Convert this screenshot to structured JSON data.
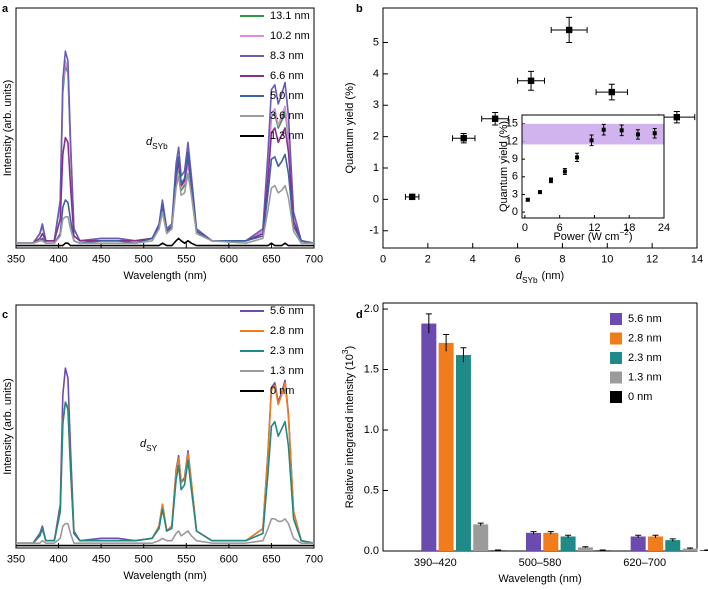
{
  "chart_data": [
    {
      "panel": "a",
      "type": "line",
      "x_label": "Wavelength (nm)",
      "y_label": "Intensity (arb. units)",
      "xlim": [
        350,
        700
      ],
      "xticks": [
        350,
        400,
        450,
        500,
        550,
        600,
        650,
        700
      ],
      "ylim": [
        0,
        100
      ],
      "legend": "upper right",
      "annotation": {
        "symbol": "d",
        "subscript": "SYb"
      },
      "x": [
        350,
        370,
        378,
        381,
        385,
        395,
        402,
        405,
        408,
        411,
        414,
        418,
        425,
        450,
        470,
        490,
        510,
        518,
        522,
        527,
        533,
        538,
        541,
        544,
        548,
        552,
        556,
        562,
        580,
        620,
        640,
        646,
        650,
        654,
        658,
        662,
        666,
        670,
        676,
        685,
        700
      ],
      "series": [
        {
          "name": "13.1 nm",
          "color": "#2e9a45",
          "values": [
            2,
            2,
            6,
            9,
            3,
            3,
            19,
            65,
            76,
            73,
            42,
            8,
            3,
            4,
            4,
            3,
            4,
            8,
            16,
            7,
            8,
            28,
            34,
            24,
            26,
            36,
            24,
            7,
            3,
            3,
            7,
            33,
            55,
            56,
            50,
            53,
            57,
            46,
            13,
            3,
            2
          ]
        },
        {
          "name": "10.2 nm",
          "color": "#dc8fdc",
          "values": [
            2,
            2,
            6,
            10,
            3,
            3,
            19,
            67,
            78,
            74,
            43,
            8,
            3,
            4,
            4,
            3,
            4,
            9,
            17,
            7,
            9,
            29,
            35,
            25,
            27,
            36,
            25,
            7,
            3,
            3,
            7,
            34,
            56,
            58,
            51,
            55,
            59,
            47,
            13,
            3,
            2
          ]
        },
        {
          "name": "8.3 nm",
          "color": "#6a5bb5",
          "values": [
            2,
            2,
            6,
            10,
            3,
            3,
            20,
            70,
            82,
            78,
            45,
            8,
            3,
            4,
            4,
            3,
            4,
            10,
            20,
            8,
            10,
            35,
            42,
            30,
            32,
            44,
            30,
            8,
            3,
            3,
            8,
            40,
            66,
            68,
            60,
            64,
            69,
            55,
            15,
            3,
            2
          ]
        },
        {
          "name": "6.6 nm",
          "color": "#8a2e8c",
          "values": [
            2,
            2,
            4,
            6,
            3,
            3,
            12,
            39,
            46,
            44,
            26,
            5,
            3,
            3,
            3,
            3,
            4,
            9,
            17,
            7,
            9,
            30,
            36,
            26,
            28,
            38,
            26,
            7,
            3,
            3,
            6,
            29,
            48,
            50,
            44,
            47,
            50,
            40,
            11,
            3,
            2
          ]
        },
        {
          "name": "5.0 nm",
          "color": "#3b62a3",
          "values": [
            2,
            2,
            3,
            4,
            2,
            2,
            6,
            17,
            20,
            19,
            12,
            3,
            2,
            3,
            3,
            2,
            4,
            9,
            18,
            7,
            9,
            32,
            38,
            27,
            29,
            40,
            27,
            7,
            3,
            3,
            5,
            23,
            37,
            38,
            34,
            36,
            39,
            31,
            9,
            3,
            2
          ]
        },
        {
          "name": "3.6 nm",
          "color": "#9b9b9b",
          "values": [
            2,
            2,
            3,
            3,
            2,
            2,
            5,
            12,
            13,
            13,
            8,
            3,
            2,
            2,
            2,
            2,
            3,
            8,
            15,
            6,
            8,
            25,
            30,
            22,
            23,
            31,
            22,
            6,
            3,
            2,
            4,
            16,
            25,
            26,
            23,
            24,
            26,
            21,
            7,
            2,
            2
          ]
        },
        {
          "name": "1.3 nm",
          "color": "#000000",
          "values": [
            1,
            1,
            1,
            1,
            1,
            1,
            1,
            1,
            2,
            2,
            1,
            1,
            1,
            1,
            1,
            1,
            1,
            1,
            2,
            1,
            1,
            3,
            4,
            3,
            2,
            3,
            2,
            1,
            1,
            1,
            1,
            1,
            2,
            1,
            1,
            1,
            2,
            1,
            1,
            1,
            1
          ]
        }
      ]
    },
    {
      "panel": "b",
      "type": "scatter",
      "x_label": {
        "symbol": "d",
        "subscript": "SYb",
        "unit": "(nm)"
      },
      "y_label": "Quantum yield (%)",
      "xlim": [
        0,
        14
      ],
      "xticks": [
        0,
        2,
        4,
        6,
        8,
        10,
        12,
        14
      ],
      "ylim": [
        -1.55,
        6.1
      ],
      "yticks": [
        -1,
        0,
        1,
        2,
        3,
        4,
        5
      ],
      "series": [
        {
          "color": "#000000",
          "x": [
            1.3,
            3.6,
            5.0,
            6.6,
            8.3,
            10.2,
            13.1
          ],
          "values": [
            0.08,
            1.95,
            2.57,
            3.78,
            5.4,
            3.42,
            2.62
          ],
          "xerr": [
            0.3,
            0.5,
            0.6,
            0.6,
            0.8,
            0.7,
            0.8
          ],
          "yerr": [
            0.08,
            0.15,
            0.2,
            0.3,
            0.4,
            0.25,
            0.18
          ]
        }
      ]
    },
    {
      "type": "scatter",
      "x_label": {
        "text": "Power (W cm",
        "superscript": "−2",
        "close": ")"
      },
      "y_label": "Quantum yield (%)",
      "xlim": [
        -0.5,
        24
      ],
      "xticks": [
        0,
        6,
        12,
        18,
        24
      ],
      "ylim": [
        -1,
        16.5
      ],
      "yticks": [
        0,
        3,
        6,
        9,
        12,
        15
      ],
      "highlight": {
        "range": [
          11.5,
          15
        ],
        "color": "#c9a6ea"
      },
      "series": [
        {
          "color": "#000000",
          "x": [
            0.5,
            2.6,
            4.5,
            6.9,
            9,
            11.5,
            13.6,
            16.7,
            19.5,
            22.4
          ],
          "values": [
            2.1,
            3.4,
            5.4,
            6.9,
            9.3,
            12.2,
            14,
            13.9,
            13.2,
            13.4
          ],
          "yerr": [
            0.2,
            0.2,
            0.4,
            0.5,
            0.7,
            0.9,
            0.9,
            0.9,
            0.8,
            0.8
          ]
        }
      ]
    },
    {
      "panel": "c",
      "type": "line",
      "x_label": "Wavelength (nm)",
      "y_label": "Intensity (arb. units)",
      "xlim": [
        350,
        700
      ],
      "xticks": [
        350,
        400,
        450,
        500,
        550,
        600,
        650,
        700
      ],
      "ylim": [
        0,
        100
      ],
      "legend": "upper right",
      "annotation": {
        "symbol": "d",
        "subscript": "SY"
      },
      "x": [
        350,
        370,
        378,
        381,
        385,
        395,
        402,
        405,
        408,
        411,
        414,
        418,
        425,
        450,
        470,
        490,
        510,
        518,
        522,
        527,
        533,
        538,
        541,
        544,
        548,
        552,
        556,
        562,
        580,
        620,
        640,
        646,
        650,
        654,
        658,
        662,
        666,
        670,
        676,
        685,
        700
      ],
      "series": [
        {
          "name": "5.6 nm",
          "color": "#6b4bb0",
          "values": [
            2,
            2,
            6,
            9,
            3,
            3,
            18,
            63,
            74,
            70,
            41,
            7,
            3,
            4,
            4,
            3,
            4,
            9,
            18,
            7,
            9,
            32,
            38,
            27,
            29,
            40,
            27,
            7,
            3,
            3,
            8,
            40,
            66,
            68,
            60,
            64,
            69,
            55,
            15,
            3,
            2
          ]
        },
        {
          "name": "2.8 nm",
          "color": "#f07c1b",
          "values": [
            2,
            2,
            5,
            8,
            3,
            3,
            15,
            52,
            60,
            58,
            33,
            6,
            3,
            3,
            3,
            3,
            4,
            9,
            18,
            7,
            9,
            31,
            37,
            27,
            28,
            39,
            27,
            7,
            3,
            3,
            8,
            39,
            65,
            67,
            59,
            63,
            68,
            54,
            15,
            3,
            2
          ]
        },
        {
          "name": "2.3 nm",
          "color": "#1f8a87",
          "values": [
            2,
            2,
            5,
            8,
            3,
            3,
            15,
            51,
            60,
            57,
            33,
            6,
            3,
            3,
            3,
            3,
            4,
            8,
            16,
            7,
            8,
            28,
            34,
            24,
            26,
            36,
            24,
            7,
            3,
            3,
            6,
            31,
            50,
            52,
            46,
            49,
            52,
            42,
            12,
            3,
            2
          ]
        },
        {
          "name": "1.3 nm",
          "color": "#9b9b9b",
          "values": [
            2,
            2,
            2,
            3,
            2,
            2,
            4,
            9,
            10,
            10,
            6,
            2,
            2,
            2,
            2,
            2,
            2,
            3,
            4,
            3,
            3,
            6,
            7,
            5,
            6,
            7,
            5,
            3,
            2,
            2,
            3,
            8,
            12,
            12,
            11,
            11,
            12,
            10,
            4,
            2,
            2
          ]
        },
        {
          "name": "0 nm",
          "color": "#000000",
          "values": [
            1,
            1,
            1,
            1,
            1,
            1,
            1,
            1,
            1,
            1,
            1,
            1,
            1,
            1,
            1,
            1,
            1,
            1,
            1,
            1,
            1,
            1,
            1,
            1,
            1,
            1,
            1,
            1,
            1,
            1,
            1,
            1,
            1,
            1,
            1,
            1,
            1,
            1,
            1,
            1,
            1
          ]
        }
      ]
    },
    {
      "panel": "d",
      "type": "bar",
      "x_label": "Wavelength (nm)",
      "y_label": {
        "text": "Relative integrated intensity (10",
        "superscript": "3",
        "close": ")"
      },
      "categories": [
        "390–420",
        "500–580",
        "620–700"
      ],
      "ylim": [
        0,
        2.05
      ],
      "yticks": [
        {
          "value": 0,
          "label": "0.0"
        },
        0.5,
        {
          "value": 1,
          "label": "1.0"
        },
        1.5,
        {
          "value": 2,
          "label": "2.0"
        }
      ],
      "legend": "upper right",
      "series": [
        {
          "name": "5.6 nm",
          "color": "#6b4bb0",
          "values": [
            1.88,
            0.15,
            0.12
          ],
          "errors": [
            0.08,
            0.01,
            0.01
          ]
        },
        {
          "name": "2.8 nm",
          "color": "#f07c1b",
          "values": [
            1.72,
            0.15,
            0.12
          ],
          "errors": [
            0.07,
            0.01,
            0.01
          ]
        },
        {
          "name": "2.3 nm",
          "color": "#1f8a87",
          "values": [
            1.62,
            0.12,
            0.09
          ],
          "errors": [
            0.06,
            0.01,
            0.01
          ]
        },
        {
          "name": "1.3 nm",
          "color": "#9b9b9b",
          "values": [
            0.22,
            0.03,
            0.02
          ],
          "errors": [
            0.01,
            0.005,
            0.005
          ]
        },
        {
          "name": "0 nm",
          "color": "#000000",
          "values": [
            0.005,
            0.005,
            0.005
          ],
          "errors": [
            0.003,
            0.003,
            0.003
          ]
        }
      ]
    }
  ]
}
